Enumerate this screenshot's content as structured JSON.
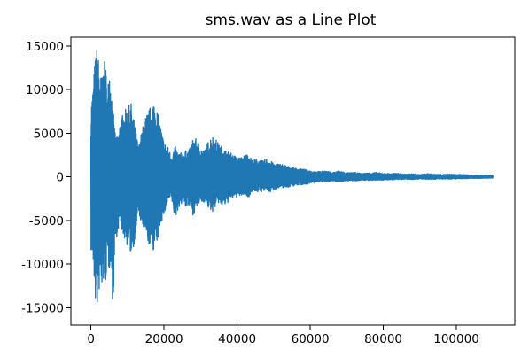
{
  "chart_data": {
    "type": "line",
    "title": "sms.wav as a Line Plot",
    "xlabel": "",
    "ylabel": "",
    "xlim": [
      -5500,
      116000
    ],
    "ylim": [
      -17000,
      16000
    ],
    "grid": false,
    "legend": "none",
    "x_ticks": [
      {
        "value": 0,
        "label": "0"
      },
      {
        "value": 20000,
        "label": "20000"
      },
      {
        "value": 40000,
        "label": "40000"
      },
      {
        "value": 60000,
        "label": "60000"
      },
      {
        "value": 80000,
        "label": "80000"
      },
      {
        "value": 100000,
        "label": "100000"
      }
    ],
    "y_ticks": [
      {
        "value": 15000,
        "label": "15000"
      },
      {
        "value": 10000,
        "label": "10000"
      },
      {
        "value": 5000,
        "label": "5000"
      },
      {
        "value": 0,
        "label": "0"
      },
      {
        "value": -5000,
        "label": "-5000"
      },
      {
        "value": -10000,
        "label": "-10000"
      },
      {
        "value": -15000,
        "label": "-15000"
      }
    ],
    "series": [
      {
        "color": "#1f77b4",
        "envelope": {
          "x": [
            0,
            500,
            1000,
            1500,
            2000,
            2500,
            3000,
            3500,
            4000,
            4500,
            5000,
            5500,
            6000,
            6500,
            7000,
            7500,
            8000,
            9000,
            10000,
            11000,
            12000,
            13000,
            14000,
            15000,
            16000,
            17000,
            18000,
            19000,
            20000,
            21000,
            22000,
            23000,
            24000,
            25000,
            26000,
            27000,
            28000,
            29000,
            30000,
            31000,
            32000,
            33000,
            34000,
            35000,
            36000,
            37000,
            38000,
            39000,
            40000,
            41000,
            42000,
            43000,
            44000,
            45000,
            46000,
            47000,
            48000,
            49000,
            50000,
            52000,
            54000,
            56000,
            58000,
            60000,
            62000,
            64000,
            66000,
            68000,
            70000,
            72000,
            74000,
            76000,
            78000,
            80000,
            82000,
            84000,
            86000,
            88000,
            90000,
            92000,
            94000,
            96000,
            98000,
            100000,
            102000,
            104000,
            106000,
            108000,
            110000
          ],
          "upper": [
            8500,
            10200,
            13000,
            15200,
            14000,
            12000,
            11500,
            13000,
            13400,
            9000,
            13500,
            11000,
            8000,
            5500,
            4500,
            5000,
            6500,
            7500,
            8000,
            8500,
            6000,
            3500,
            5500,
            7000,
            7800,
            9000,
            8000,
            6000,
            4000,
            3500,
            2500,
            3500,
            2700,
            2800,
            3000,
            3200,
            4500,
            4300,
            3500,
            3000,
            4000,
            4800,
            4500,
            3700,
            3500,
            3000,
            2800,
            2500,
            2300,
            2200,
            2500,
            2700,
            2000,
            2000,
            2000,
            1800,
            2100,
            1900,
            1500,
            1500,
            1200,
            1000,
            900,
            700,
            600,
            700,
            500,
            700,
            450,
            500,
            400,
            450,
            500,
            400,
            380,
            400,
            300,
            350,
            250,
            380,
            300,
            280,
            300,
            270,
            250,
            220,
            200,
            180,
            170
          ],
          "lower": [
            -8500,
            -10000,
            -13000,
            -16200,
            -14000,
            -12500,
            -14000,
            -12000,
            -12300,
            -10000,
            -11000,
            -9000,
            -16200,
            -8500,
            -7000,
            -6000,
            -5500,
            -7000,
            -8000,
            -9000,
            -7500,
            -4000,
            -6000,
            -7000,
            -8000,
            -8500,
            -8000,
            -5500,
            -4500,
            -3000,
            -2500,
            -5000,
            -3500,
            -3000,
            -3500,
            -3500,
            -4500,
            -3500,
            -3000,
            -2900,
            -3500,
            -4200,
            -3500,
            -3000,
            -3500,
            -3200,
            -2700,
            -2500,
            -2300,
            -2300,
            -2000,
            -2500,
            -1700,
            -1700,
            -1800,
            -1700,
            -1600,
            -1800,
            -1500,
            -1300,
            -1200,
            -1000,
            -900,
            -800,
            -600,
            -600,
            -500,
            -600,
            -450,
            -500,
            -400,
            -420,
            -400,
            -380,
            -350,
            -350,
            -300,
            -320,
            -250,
            -320,
            -280,
            -260,
            -260,
            -240,
            -220,
            -200,
            -190,
            -170,
            -160
          ]
        }
      }
    ]
  }
}
